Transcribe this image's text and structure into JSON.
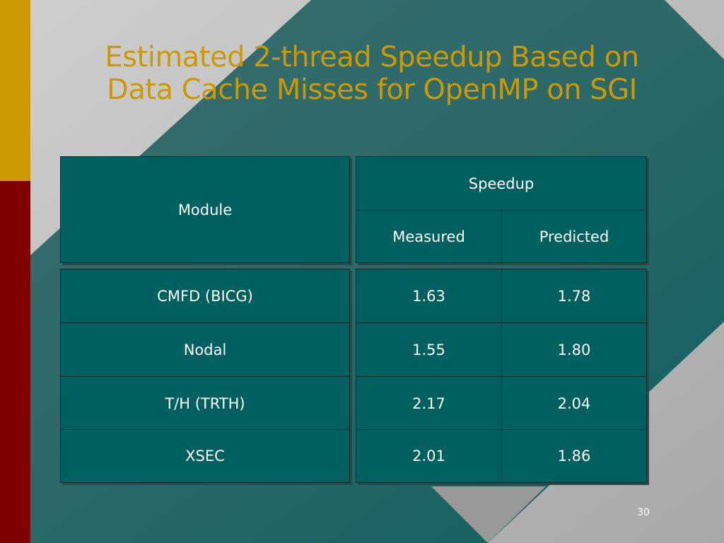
{
  "slide": {
    "title_line1": "Estimated 2-thread Speedup Based on",
    "title_line2": "Data Cache Misses for OpenMP on SGI",
    "page_number": "30"
  },
  "table": {
    "module_header": "Module",
    "speedup_header": "Speedup",
    "measured_header": "Measured",
    "predicted_header": "Predicted",
    "rows": [
      {
        "module": "CMFD (BICG)",
        "measured": "1.63",
        "predicted": "1.78"
      },
      {
        "module": "Nodal",
        "measured": "1.55",
        "predicted": "1.80"
      },
      {
        "module": "T/H (TRTH)",
        "measured": "2.17",
        "predicted": "2.04"
      },
      {
        "module": "XSEC",
        "measured": "2.01",
        "predicted": "1.86"
      }
    ]
  },
  "colors": {
    "title": "#cc9900",
    "table_fill": "#006060",
    "background_teal": "#1a6464",
    "gold_bar": "#cc9900",
    "red_bar": "#800000"
  }
}
